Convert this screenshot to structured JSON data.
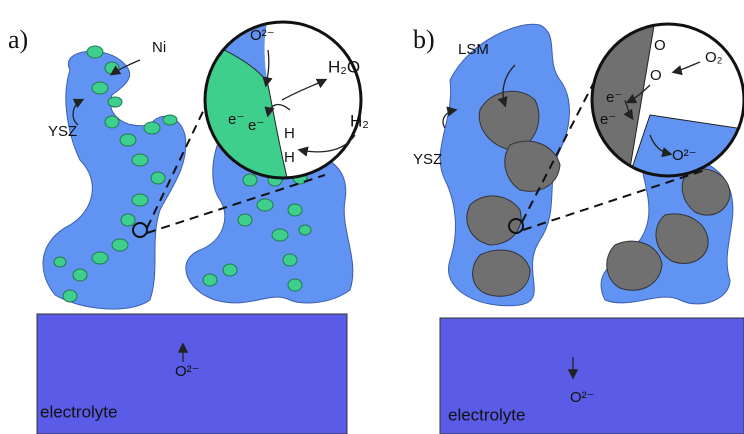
{
  "panel_a": {
    "label": "a)",
    "labels": {
      "ni": "Ni",
      "ysz": "YSZ",
      "electrolyte": "electrolyte",
      "ion": "O²⁻"
    },
    "zoom": {
      "ion": "O²⁻",
      "water": "H₂O",
      "electron_1": "e⁻",
      "electron_2": "e⁻",
      "hydrogen_1": "H",
      "hydrogen_2": "H",
      "hydrogen_gas": "H₂"
    }
  },
  "panel_b": {
    "label": "b)",
    "labels": {
      "lsm": "LSM",
      "ysz": "YSZ",
      "electrolyte": "electrolyte",
      "ion": "O²⁻"
    },
    "zoom": {
      "oxygen_1": "O",
      "oxygen_gas": "O₂",
      "oxygen_2": "O",
      "electron_1": "e⁻",
      "electron_2": "e⁻",
      "ion": "O²⁻"
    }
  }
}
